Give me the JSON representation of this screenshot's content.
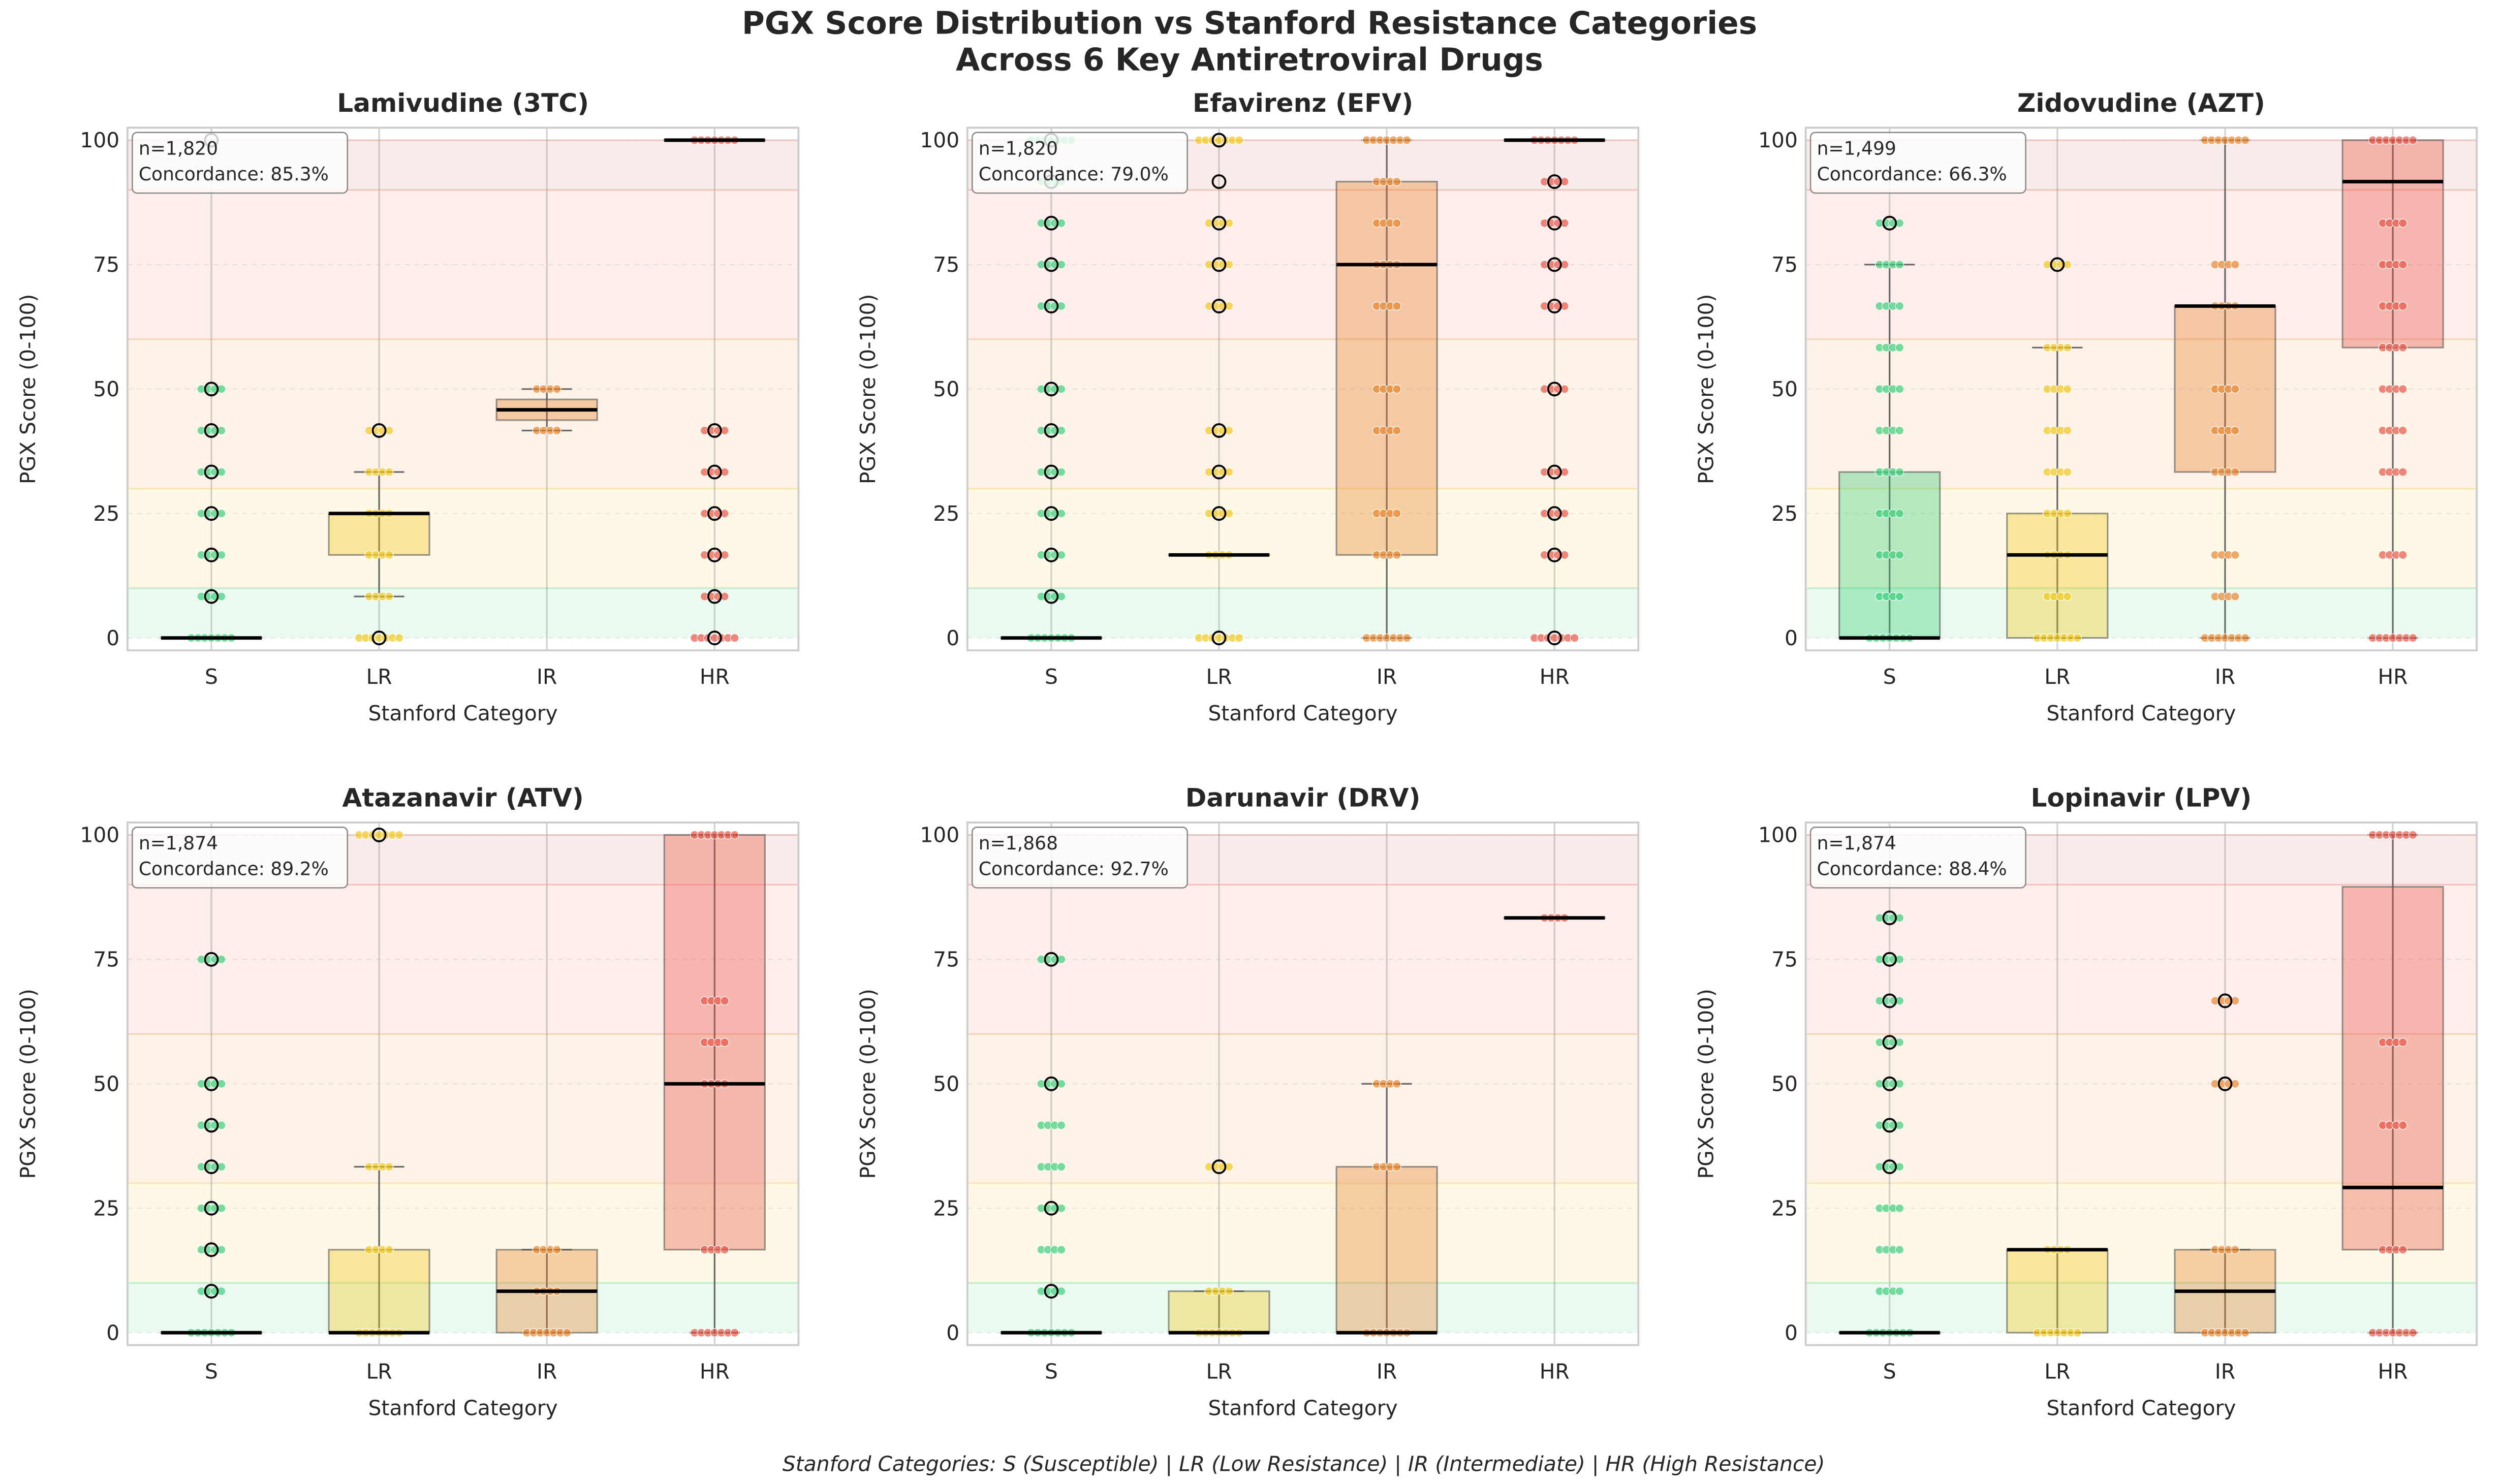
{
  "chart_data": {
    "title": "PGX Score Distribution vs Stanford Resistance Categories\nAcross 6 Key Antiretroviral Drugs",
    "title_lines": [
      "PGX Score Distribution vs Stanford Resistance Categories",
      "Across 6 Key Antiretroviral Drugs"
    ],
    "footnote": "Stanford Categories: S (Susceptible) | LR (Low Resistance) | IR (Intermediate) | HR (High Resistance)",
    "colors": {
      "S": "#2ecc71",
      "LR": "#f1c40f",
      "IR": "#e67e22",
      "HR": "#e74c3c"
    },
    "background_bands": [
      {
        "from": 0,
        "to": 10,
        "color": "#2ecc71"
      },
      {
        "from": 10,
        "to": 30,
        "color": "#f1c40f"
      },
      {
        "from": 30,
        "to": 60,
        "color": "#e67e22"
      },
      {
        "from": 60,
        "to": 90,
        "color": "#e74c3c"
      },
      {
        "from": 90,
        "to": 100,
        "color": "#c0392b"
      }
    ],
    "panels": [
      {
        "type": "box+strip",
        "title": "Lamivudine (3TC)",
        "n_label": "n=1,820",
        "concordance_label": "Concordance: 85.3%",
        "xlabel": "Stanford Category",
        "ylabel": "PGX Score (0-100)",
        "categories": [
          "S",
          "LR",
          "IR",
          "HR"
        ],
        "ylim": [
          -2.5,
          102.5
        ],
        "yticks": [
          0,
          25,
          50,
          75,
          100
        ],
        "grid": true,
        "boxes": [
          {
            "cat": "S",
            "q1": 0,
            "median": 0,
            "q3": 0,
            "whislo": 0,
            "whishi": 0,
            "points": [
              0,
              8.33,
              16.67,
              25,
              33.33,
              41.67,
              50
            ],
            "outliers": [
              8.33,
              16.67,
              25,
              33.33,
              41.67,
              50,
              100
            ]
          },
          {
            "cat": "LR",
            "q1": 16.67,
            "median": 25,
            "q3": 25,
            "whislo": 8.33,
            "whishi": 33.33,
            "points": [
              0,
              8.33,
              16.67,
              25,
              33.33,
              41.67
            ],
            "outliers": [
              0,
              41.67
            ]
          },
          {
            "cat": "IR",
            "q1": 43.75,
            "median": 45.83,
            "q3": 47.92,
            "whislo": 41.67,
            "whishi": 50,
            "points": [
              41.67,
              50
            ],
            "outliers": []
          },
          {
            "cat": "HR",
            "q1": 100,
            "median": 100,
            "q3": 100,
            "whislo": 100,
            "whishi": 100,
            "points": [
              0,
              8.33,
              16.67,
              25,
              33.33,
              41.67,
              100
            ],
            "outliers": [
              0,
              8.33,
              16.67,
              25,
              33.33,
              41.67
            ]
          }
        ]
      },
      {
        "type": "box+strip",
        "title": "Efavirenz (EFV)",
        "n_label": "n=1,820",
        "concordance_label": "Concordance: 79.0%",
        "xlabel": "Stanford Category",
        "ylabel": "PGX Score (0-100)",
        "categories": [
          "S",
          "LR",
          "IR",
          "HR"
        ],
        "ylim": [
          -2.5,
          102.5
        ],
        "yticks": [
          0,
          25,
          50,
          75,
          100
        ],
        "grid": true,
        "boxes": [
          {
            "cat": "S",
            "q1": 0,
            "median": 0,
            "q3": 0,
            "whislo": 0,
            "whishi": 0,
            "points": [
              0,
              8.33,
              16.67,
              25,
              33.33,
              41.67,
              50,
              66.67,
              75,
              83.33,
              91.67,
              100
            ],
            "outliers": [
              8.33,
              16.67,
              25,
              33.33,
              41.67,
              50,
              66.67,
              75,
              83.33,
              91.67,
              100
            ]
          },
          {
            "cat": "LR",
            "q1": 16.67,
            "median": 16.67,
            "q3": 16.67,
            "whislo": 16.67,
            "whishi": 16.67,
            "points": [
              0,
              16.67,
              25,
              33.33,
              41.67,
              66.67,
              75,
              83.33,
              100
            ],
            "outliers": [
              0,
              25,
              33.33,
              41.67,
              66.67,
              75,
              83.33,
              91.67,
              100
            ]
          },
          {
            "cat": "IR",
            "q1": 16.67,
            "median": 75,
            "q3": 91.67,
            "whislo": 0,
            "whishi": 100,
            "points": [
              0,
              16.67,
              25,
              41.67,
              50,
              66.67,
              75,
              83.33,
              91.67,
              100
            ],
            "outliers": []
          },
          {
            "cat": "HR",
            "q1": 100,
            "median": 100,
            "q3": 100,
            "whislo": 100,
            "whishi": 100,
            "points": [
              0,
              16.67,
              25,
              33.33,
              50,
              66.67,
              75,
              83.33,
              91.67,
              100
            ],
            "outliers": [
              0,
              16.67,
              25,
              33.33,
              50,
              66.67,
              75,
              83.33,
              91.67
            ]
          }
        ]
      },
      {
        "type": "box+strip",
        "title": "Zidovudine (AZT)",
        "n_label": "n=1,499",
        "concordance_label": "Concordance: 66.3%",
        "xlabel": "Stanford Category",
        "ylabel": "PGX Score (0-100)",
        "categories": [
          "S",
          "LR",
          "IR",
          "HR"
        ],
        "ylim": [
          -2.5,
          102.5
        ],
        "yticks": [
          0,
          25,
          50,
          75,
          100
        ],
        "grid": true,
        "boxes": [
          {
            "cat": "S",
            "q1": 0,
            "median": 0,
            "q3": 33.33,
            "whislo": 0,
            "whishi": 75,
            "points": [
              0,
              8.33,
              16.67,
              25,
              33.33,
              41.67,
              50,
              58.33,
              66.67,
              75,
              83.33
            ],
            "outliers": [
              83.33
            ]
          },
          {
            "cat": "LR",
            "q1": 0,
            "median": 16.67,
            "q3": 25,
            "whislo": 0,
            "whishi": 58.33,
            "points": [
              0,
              8.33,
              16.67,
              25,
              33.33,
              41.67,
              50,
              58.33,
              75
            ],
            "outliers": [
              75
            ]
          },
          {
            "cat": "IR",
            "q1": 33.33,
            "median": 66.67,
            "q3": 66.67,
            "whislo": 0,
            "whishi": 100,
            "points": [
              0,
              8.33,
              16.67,
              33.33,
              41.67,
              50,
              66.67,
              75,
              100
            ],
            "outliers": []
          },
          {
            "cat": "HR",
            "q1": 58.33,
            "median": 91.67,
            "q3": 100,
            "whislo": 0,
            "whishi": 100,
            "points": [
              0,
              16.67,
              33.33,
              41.67,
              50,
              58.33,
              66.67,
              75,
              83.33,
              100
            ],
            "outliers": []
          }
        ]
      },
      {
        "type": "box+strip",
        "title": "Atazanavir (ATV)",
        "n_label": "n=1,874",
        "concordance_label": "Concordance: 89.2%",
        "xlabel": "Stanford Category",
        "ylabel": "PGX Score (0-100)",
        "categories": [
          "S",
          "LR",
          "IR",
          "HR"
        ],
        "ylim": [
          -2.5,
          102.5
        ],
        "yticks": [
          0,
          25,
          50,
          75,
          100
        ],
        "grid": true,
        "boxes": [
          {
            "cat": "S",
            "q1": 0,
            "median": 0,
            "q3": 0,
            "whislo": 0,
            "whishi": 0,
            "points": [
              0,
              8.33,
              16.67,
              25,
              33.33,
              41.67,
              50,
              75
            ],
            "outliers": [
              8.33,
              16.67,
              25,
              33.33,
              41.67,
              50,
              75
            ]
          },
          {
            "cat": "LR",
            "q1": 0,
            "median": 0,
            "q3": 16.67,
            "whislo": 0,
            "whishi": 33.33,
            "points": [
              0,
              16.67,
              33.33,
              100
            ],
            "outliers": [
              100
            ]
          },
          {
            "cat": "IR",
            "q1": 0,
            "median": 8.33,
            "q3": 16.67,
            "whislo": 0,
            "whishi": 16.67,
            "points": [
              0,
              8.33,
              16.67
            ],
            "outliers": []
          },
          {
            "cat": "HR",
            "q1": 16.67,
            "median": 50,
            "q3": 100,
            "whislo": 0,
            "whishi": 100,
            "points": [
              0,
              16.67,
              50,
              58.33,
              66.67,
              100
            ],
            "outliers": []
          }
        ]
      },
      {
        "type": "box+strip",
        "title": "Darunavir (DRV)",
        "n_label": "n=1,868",
        "concordance_label": "Concordance: 92.7%",
        "xlabel": "Stanford Category",
        "ylabel": "PGX Score (0-100)",
        "categories": [
          "S",
          "LR",
          "IR",
          "HR"
        ],
        "ylim": [
          -2.5,
          102.5
        ],
        "yticks": [
          0,
          25,
          50,
          75,
          100
        ],
        "grid": true,
        "boxes": [
          {
            "cat": "S",
            "q1": 0,
            "median": 0,
            "q3": 0,
            "whislo": 0,
            "whishi": 0,
            "points": [
              0,
              8.33,
              16.67,
              25,
              33.33,
              41.67,
              50,
              75
            ],
            "outliers": [
              8.33,
              25,
              50,
              75
            ]
          },
          {
            "cat": "LR",
            "q1": 0,
            "median": 0,
            "q3": 8.33,
            "whislo": 0,
            "whishi": 8.33,
            "points": [
              0,
              8.33,
              33.33
            ],
            "outliers": [
              33.33
            ]
          },
          {
            "cat": "IR",
            "q1": 0,
            "median": 0,
            "q3": 33.33,
            "whislo": 0,
            "whishi": 50,
            "points": [
              0,
              33.33,
              50
            ],
            "outliers": []
          },
          {
            "cat": "HR",
            "q1": 83.33,
            "median": 83.33,
            "q3": 83.33,
            "whislo": 83.33,
            "whishi": 83.33,
            "points": [
              83.33
            ],
            "outliers": []
          }
        ]
      },
      {
        "type": "box+strip",
        "title": "Lopinavir (LPV)",
        "n_label": "n=1,874",
        "concordance_label": "Concordance: 88.4%",
        "xlabel": "Stanford Category",
        "ylabel": "PGX Score (0-100)",
        "categories": [
          "S",
          "LR",
          "IR",
          "HR"
        ],
        "ylim": [
          -2.5,
          102.5
        ],
        "yticks": [
          0,
          25,
          50,
          75,
          100
        ],
        "grid": true,
        "boxes": [
          {
            "cat": "S",
            "q1": 0,
            "median": 0,
            "q3": 0,
            "whislo": 0,
            "whishi": 0,
            "points": [
              0,
              8.33,
              16.67,
              25,
              33.33,
              41.67,
              50,
              58.33,
              66.67,
              75,
              83.33
            ],
            "outliers": [
              33.33,
              41.67,
              50,
              58.33,
              66.67,
              75,
              83.33
            ]
          },
          {
            "cat": "LR",
            "q1": 0,
            "median": 16.67,
            "q3": 16.67,
            "whislo": 0,
            "whishi": 16.67,
            "points": [
              0,
              16.67
            ],
            "outliers": []
          },
          {
            "cat": "IR",
            "q1": 0,
            "median": 8.33,
            "q3": 16.67,
            "whislo": 0,
            "whishi": 16.67,
            "points": [
              0,
              16.67,
              50,
              66.67
            ],
            "outliers": [
              50,
              66.67
            ]
          },
          {
            "cat": "HR",
            "q1": 16.67,
            "median": 29.17,
            "q3": 89.58,
            "whislo": 0,
            "whishi": 100,
            "points": [
              0,
              16.67,
              41.67,
              58.33,
              100
            ],
            "outliers": []
          }
        ]
      }
    ]
  }
}
